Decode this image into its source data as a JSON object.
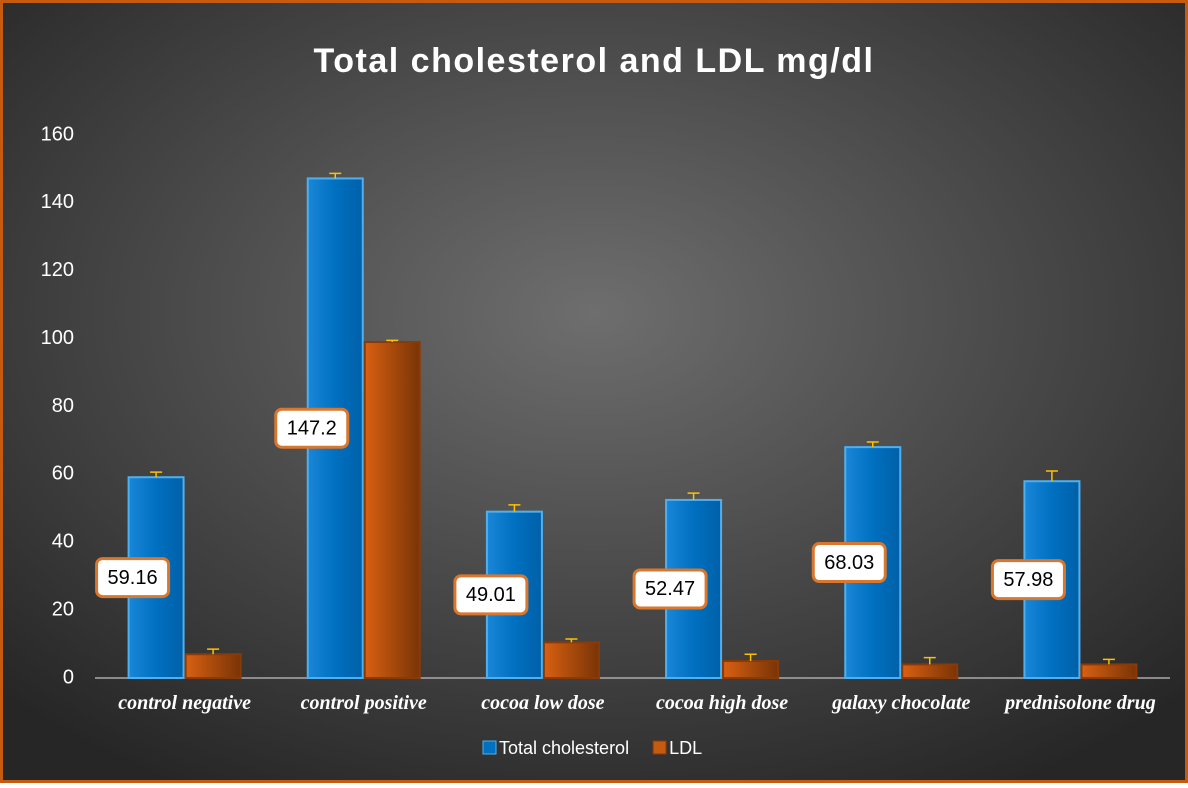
{
  "chart_data": {
    "type": "bar",
    "title": "Total cholesterol and LDL mg/dl",
    "categories": [
      "control negative",
      "control positive",
      "cocoa low dose",
      "cocoa high dose",
      "galaxy chocolate",
      "prednisolone drug"
    ],
    "series": [
      {
        "name": "Total cholesterol",
        "color": "#0070c0",
        "values": [
          59.16,
          147.2,
          49.01,
          52.47,
          68.03,
          57.98
        ],
        "errors": [
          1.5,
          1.5,
          2,
          2,
          1.5,
          3
        ],
        "show_value_labels": true
      },
      {
        "name": "LDL",
        "color": "#c55a11",
        "values": [
          7,
          99,
          10.5,
          5,
          4,
          4
        ],
        "errors": [
          1.5,
          0.5,
          1,
          2,
          2,
          1.5
        ],
        "show_value_labels": false
      }
    ],
    "ylim": [
      0,
      160
    ],
    "yticks": [
      0,
      20,
      40,
      60,
      80,
      100,
      120,
      140,
      160
    ],
    "grid": false,
    "legend": "bottom"
  }
}
